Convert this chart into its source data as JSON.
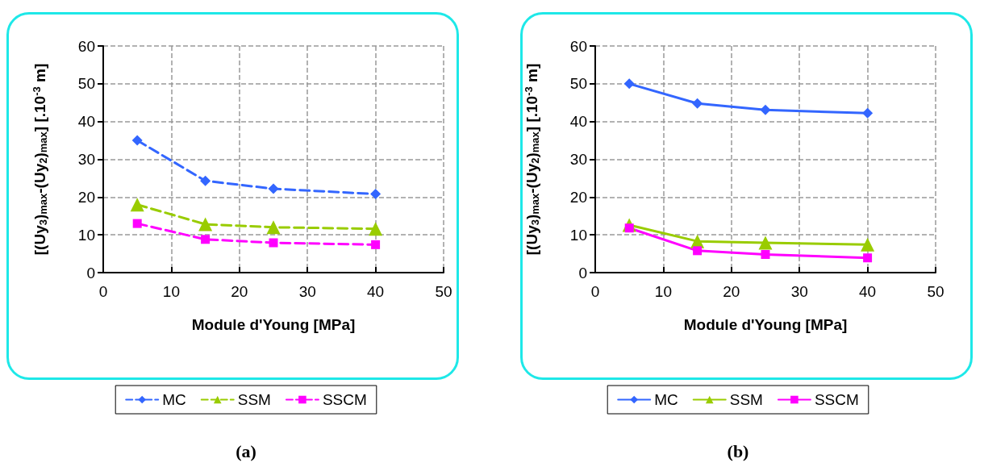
{
  "chart_data": [
    {
      "type": "line",
      "xlabel": "Module d'Young [MPa]",
      "ylabel": "[(Uy$_{3}$)$_{max}$-(Uy$_{2}$)$_{max}$] [.10$^{-3}$ m]",
      "x": [
        5,
        15,
        25,
        40
      ],
      "xlim": [
        0,
        50
      ],
      "xticks": [
        0,
        10,
        20,
        30,
        40,
        50
      ],
      "ylim": [
        0,
        60
      ],
      "yticks": [
        0,
        10,
        20,
        30,
        40,
        50,
        60
      ],
      "grid": true,
      "legend": "bottom",
      "line_style": "dashed",
      "annotations": [
        "(a)"
      ],
      "series": [
        {
          "name": "MC",
          "color": "#3366ff",
          "marker": "diamond",
          "values": [
            35,
            24.3,
            22.2,
            20.8
          ]
        },
        {
          "name": "SSM",
          "color": "#99cc00",
          "marker": "triangle",
          "values": [
            18,
            12.8,
            12,
            11.6
          ]
        },
        {
          "name": "SSCM",
          "color": "#ff00ff",
          "marker": "square",
          "values": [
            13,
            8.8,
            7.9,
            7.4
          ]
        }
      ]
    },
    {
      "type": "line",
      "xlabel": "Module d'Young [MPa]",
      "ylabel": "[(Uy$_{3}$)$_{max}$-(Uy$_{2}$)$_{max}$] [.10$^{-3}$ m]",
      "x": [
        5,
        15,
        25,
        40
      ],
      "xlim": [
        0,
        50
      ],
      "xticks": [
        0,
        10,
        20,
        30,
        40,
        50
      ],
      "ylim": [
        0,
        60
      ],
      "yticks": [
        0,
        10,
        20,
        30,
        40,
        50,
        60
      ],
      "grid": true,
      "legend": "bottom",
      "line_style": "solid",
      "annotations": [
        "(b)"
      ],
      "series": [
        {
          "name": "MC",
          "color": "#3366ff",
          "marker": "diamond",
          "values": [
            50,
            44.8,
            43.1,
            42.2
          ]
        },
        {
          "name": "SSM",
          "color": "#99cc00",
          "marker": "triangle",
          "values": [
            12.6,
            8.3,
            7.9,
            7.4
          ]
        },
        {
          "name": "SSCM",
          "color": "#ff00ff",
          "marker": "square",
          "values": [
            11.8,
            5.8,
            4.8,
            3.9
          ]
        }
      ]
    }
  ]
}
